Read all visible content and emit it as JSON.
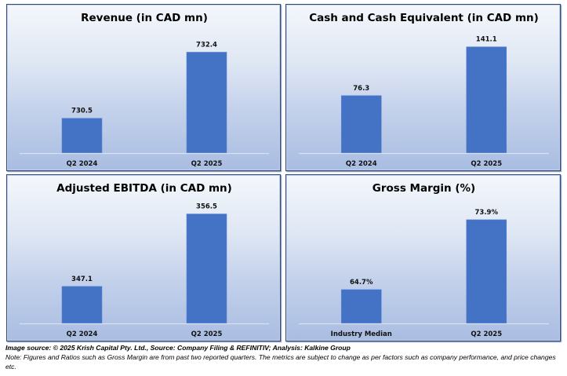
{
  "chart_data": [
    {
      "type": "bar",
      "title": "Revenue (in CAD mn)",
      "categories": [
        "Q2 2024",
        "Q2 2025"
      ],
      "values": [
        730.5,
        732.4
      ],
      "data_labels": [
        "730.5",
        "732.4"
      ],
      "xlabel": "",
      "ylabel": "",
      "ylim": [
        729.5,
        733.2
      ],
      "grid": false,
      "legend": "none",
      "bar_color": "#4472C4"
    },
    {
      "type": "bar",
      "title": "Cash and Cash Equivalent (in CAD mn)",
      "categories": [
        "Q2 2024",
        "Q2 2025"
      ],
      "values": [
        76.3,
        141.1
      ],
      "data_labels": [
        "76.3",
        "141.1"
      ],
      "xlabel": "",
      "ylabel": "",
      "ylim": [
        0,
        171
      ],
      "grid": false,
      "legend": "none",
      "bar_color": "#4472C4"
    },
    {
      "type": "bar",
      "title": "Adjusted EBITDA (in CAD mn)",
      "categories": [
        "Q2 2024",
        "Q2 2025"
      ],
      "values": [
        347.1,
        356.5
      ],
      "data_labels": [
        "347.1",
        "356.5"
      ],
      "xlabel": "",
      "ylabel": "",
      "ylim": [
        342.3,
        359
      ],
      "grid": false,
      "legend": "none",
      "bar_color": "#4472C4"
    },
    {
      "type": "bar",
      "title": "Gross Margin (%)",
      "categories": [
        "Industry Median",
        "Q2 2025"
      ],
      "values": [
        64.7,
        73.9
      ],
      "data_labels": [
        "64.7%",
        "73.9%"
      ],
      "xlabel": "",
      "ylabel": "",
      "ylim": [
        60.25,
        77.2
      ],
      "grid": false,
      "legend": "none",
      "bar_color": "#4472C4"
    }
  ],
  "footer": {
    "source": "Image source: © 2025 Krish Capital Pty. Ltd., Source: Company Filing & REFINITIV; Analysis: Kalkine Group",
    "note": "Note: Figures and Ratios such as Gross Margin are from past two reported  quarters. The metrics are subject to change as per factors such as company performance, and price changes etc."
  }
}
